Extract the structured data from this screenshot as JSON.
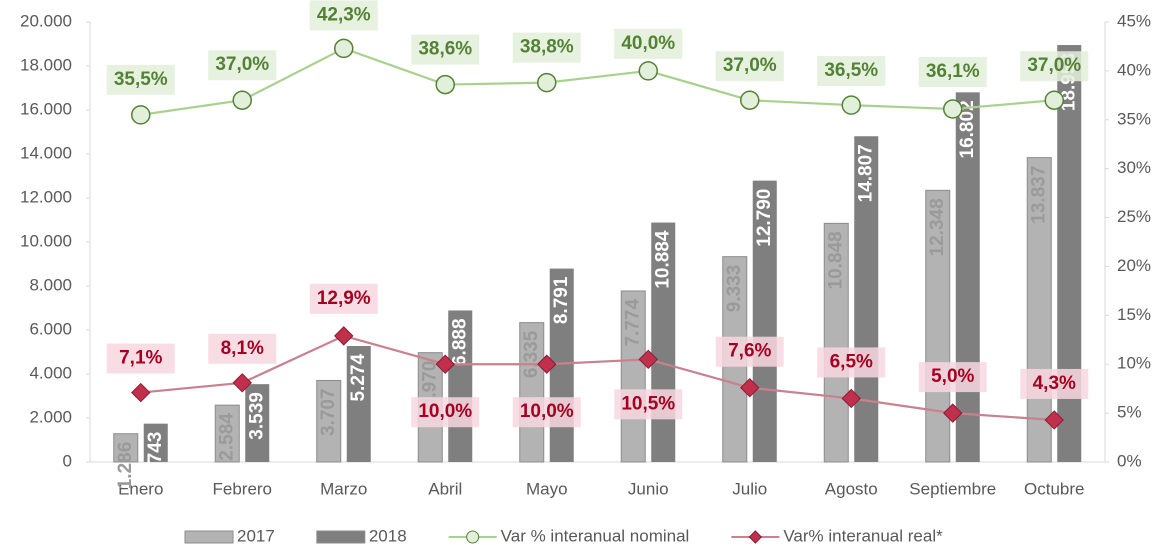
{
  "chart_data": {
    "type": "bar",
    "categories": [
      "Enero",
      "Febrero",
      "Marzo",
      "Abril",
      "Mayo",
      "Junio",
      "Julio",
      "Agosto",
      "Septiembre",
      "Octubre"
    ],
    "ylim": [
      0,
      20000
    ],
    "yticks": [
      0,
      {
        "value": 2000,
        "label": "2.000"
      },
      {
        "value": 4000,
        "label": "4.000"
      },
      {
        "value": 6000,
        "label": "6.000"
      },
      {
        "value": 8000,
        "label": "8.000"
      },
      {
        "value": 10000,
        "label": "10.000"
      },
      {
        "value": 12000,
        "label": "12.000"
      },
      {
        "value": 14000,
        "label": "14.000"
      },
      {
        "value": 16000,
        "label": "16.000"
      },
      {
        "value": 18000,
        "label": "18.000"
      },
      {
        "value": 20000,
        "label": "20.000"
      }
    ],
    "y2lim": [
      0,
      45
    ],
    "y2ticks": [
      {
        "value": 0,
        "label": "0%"
      },
      {
        "value": 5,
        "label": "5%"
      },
      {
        "value": 10,
        "label": "10%"
      },
      {
        "value": 15,
        "label": "15%"
      },
      {
        "value": 20,
        "label": "20%"
      },
      {
        "value": 25,
        "label": "25%"
      },
      {
        "value": 30,
        "label": "30%"
      },
      {
        "value": 35,
        "label": "35%"
      },
      {
        "value": 40,
        "label": "40%"
      },
      {
        "value": 45,
        "label": "45%"
      }
    ],
    "grid": false,
    "legend": "bottom",
    "series": [
      {
        "name": "2017",
        "type": "bar",
        "color": "#b3b3b3",
        "values": [
          1286,
          2584,
          3707,
          4970,
          6335,
          7774,
          9333,
          10848,
          12348,
          13837
        ],
        "value_labels": [
          "1.286",
          "2.584",
          "3.707",
          "4.970",
          "6.335",
          "7.774",
          "9.333",
          "10.848",
          "12.348",
          "13.837"
        ]
      },
      {
        "name": "2018",
        "type": "bar",
        "color": "#7f7f7f",
        "values": [
          1743,
          3539,
          5274,
          6888,
          8791,
          10884,
          12790,
          14807,
          16802,
          18953
        ],
        "value_labels": [
          "1.743",
          "3.539",
          "5.274",
          "6.888",
          "8.791",
          "10.884",
          "12.790",
          "14.807",
          "16.802",
          "18.953"
        ]
      },
      {
        "name": "Var % interanual nominal",
        "type": "line",
        "axis": "y2",
        "color": "#a9d18e",
        "values": [
          35.5,
          37.0,
          42.3,
          38.6,
          38.8,
          40.0,
          37.0,
          36.5,
          36.1,
          37.0
        ],
        "value_labels": [
          "35,5%",
          "37,0%",
          "42,3%",
          "38,6%",
          "38,8%",
          "40,0%",
          "37,0%",
          "36,5%",
          "36,1%",
          "37,0%"
        ]
      },
      {
        "name": "Var% interanual real*",
        "type": "line",
        "axis": "y2",
        "color": "#c9808f",
        "values": [
          7.1,
          8.1,
          12.9,
          10.0,
          10.0,
          10.5,
          7.6,
          6.5,
          5.0,
          4.3
        ],
        "value_labels": [
          "7,1%",
          "8,1%",
          "12,9%",
          "10,0%",
          "10,0%",
          "10,5%",
          "7,6%",
          "6,5%",
          "5,0%",
          "4,3%"
        ]
      }
    ]
  }
}
